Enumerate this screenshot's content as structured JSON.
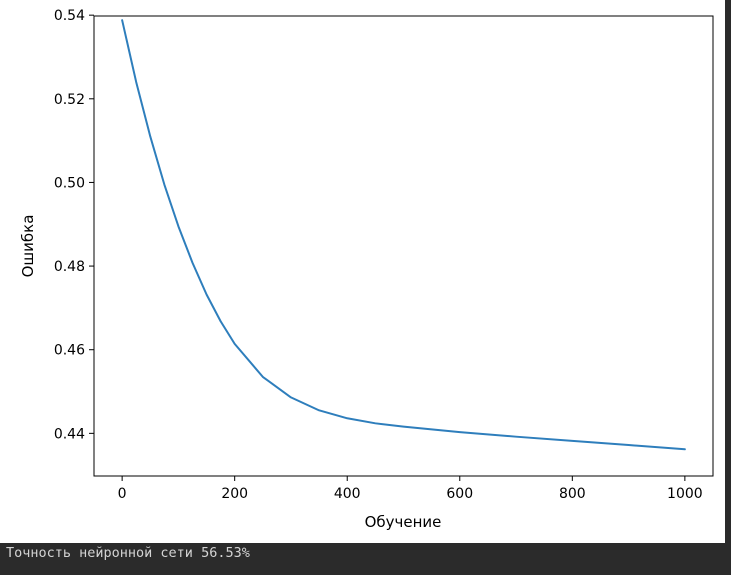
{
  "output": {
    "text": "Точность нейронной сети 56.53%"
  },
  "chart_data": {
    "type": "line",
    "title": "",
    "xlabel": "Обучение",
    "ylabel": "Ошибка",
    "xlim": [
      -50,
      1050
    ],
    "ylim": [
      0.4298,
      0.5398
    ],
    "xticks": [
      0,
      200,
      400,
      600,
      800,
      1000
    ],
    "yticks": [
      0.44,
      0.46,
      0.48,
      0.5,
      0.52,
      0.54
    ],
    "ytick_labels": [
      "0.44",
      "0.46",
      "0.48",
      "0.50",
      "0.52",
      "0.54"
    ],
    "grid": false,
    "series": [
      {
        "color": "#2e7ebc",
        "x": [
          0,
          25,
          50,
          75,
          100,
          125,
          150,
          175,
          200,
          250,
          300,
          350,
          400,
          450,
          500,
          600,
          700,
          800,
          900,
          1000
        ],
        "y": [
          0.5388,
          0.524,
          0.511,
          0.4995,
          0.4895,
          0.4808,
          0.4732,
          0.4668,
          0.4614,
          0.4535,
          0.4486,
          0.4455,
          0.4436,
          0.4424,
          0.4416,
          0.4403,
          0.4392,
          0.4382,
          0.4372,
          0.4362
        ]
      }
    ]
  }
}
